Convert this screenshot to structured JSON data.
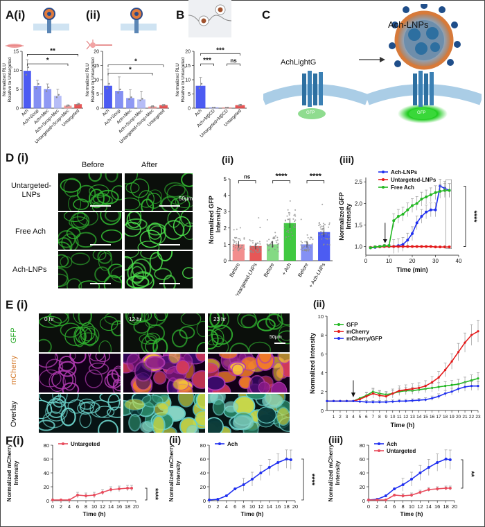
{
  "panels": {
    "A_i": "A(i)",
    "A_ii": "(ii)",
    "B": "B",
    "C": "C",
    "D_i": "D (i)",
    "D_ii": "(ii)",
    "D_iii": "(iii)",
    "E_i": "E (i)",
    "E_ii": "(ii)",
    "F_i": "F(i)",
    "F_ii": "(ii)",
    "F_iii": "(iii)"
  },
  "significance": {
    "A_i_top": "**",
    "A_i_mid": "*",
    "A_ii_top": "*",
    "A_ii_mid": "*",
    "B_top": "***",
    "B_mid": "***",
    "B_ns": "ns",
    "D_ii_ns": "ns",
    "D_ii_s1": "****",
    "D_ii_s2": "****",
    "D_iii": "****",
    "F_i": "****",
    "F_ii": "****",
    "F_iii": "**"
  },
  "C_labels": {
    "achlight": "AchLightG",
    "achlnps": "Ach-LNPs",
    "gfp_left": "GFP",
    "gfp_right": "GFP"
  },
  "D_i": {
    "before": "Before",
    "after": "After",
    "row1": "Untargeted-\nLNPs",
    "row1a": "Untargeted-",
    "row1b": "LNPs",
    "row2": "Free Ach",
    "row3": "Ach-LNPs",
    "scale": "50μm"
  },
  "E_i": {
    "t0": "0 hr",
    "t12": "12 hr",
    "t23": "23 hr",
    "gfp": "GFP",
    "mcherry": "mCherry",
    "overlay": "Overlay",
    "scale": "50μm"
  },
  "chart_data": [
    {
      "id": "A_i",
      "type": "bar",
      "ylabel": "Normalized RLU\nRelative to Untargeted",
      "ylabel_lines": [
        "Normalized RLU",
        "Relative to Untargeted"
      ],
      "categories": [
        "Ach",
        "Ach+Scop",
        "Ach+Mec",
        "Ach+Scop+Mec",
        "Untargeted+Scop+Mec",
        "Untargeted"
      ],
      "values": [
        9.8,
        5.8,
        5.0,
        3.2,
        0.6,
        1.0
      ],
      "errors": [
        3.0,
        1.6,
        1.4,
        1.8,
        0.3,
        0.3
      ],
      "colors": [
        "#2d3ff0",
        "#6f7df2",
        "#7c88f3",
        "#aab2f6",
        "#f08a8a",
        "#e23a3a"
      ],
      "ylim": [
        0,
        15
      ],
      "yticks": [
        0,
        5,
        10,
        15
      ]
    },
    {
      "id": "A_ii",
      "type": "bar",
      "ylabel_lines": [
        "Normalized RLU",
        "Relative to Untargeted"
      ],
      "categories": [
        "Ach",
        "Ach+Scop",
        "Ach+Mec",
        "Ach+Scop+Mec",
        "Untargeted+Scop+Mec",
        "Untargeted"
      ],
      "values": [
        7.8,
        6.0,
        3.5,
        3.0,
        0.5,
        1.0
      ],
      "errors": [
        6.0,
        5.0,
        3.0,
        3.0,
        0.4,
        0.3
      ],
      "colors": [
        "#2d3ff0",
        "#6f7df2",
        "#7c88f3",
        "#aab2f6",
        "#f08a8a",
        "#e23a3a"
      ],
      "ylim": [
        0,
        20
      ],
      "yticks": [
        0,
        5,
        10,
        15,
        20
      ]
    },
    {
      "id": "B",
      "type": "bar",
      "ylabel_lines": [
        "Normalized RLU",
        "Relative to Untargeted"
      ],
      "categories": [
        "Ach",
        "Ach+MβCD",
        "Untargeted+MβCD",
        "Untargeted"
      ],
      "values": [
        7.8,
        0.2,
        0.2,
        1.0
      ],
      "errors": [
        3.0,
        0.1,
        0.1,
        0.4
      ],
      "colors": [
        "#2d3ff0",
        "#8a93f2",
        "#f08a8a",
        "#e23a3a"
      ],
      "ylim": [
        0,
        20
      ],
      "yticks": [
        0,
        5,
        10,
        15,
        20
      ]
    },
    {
      "id": "D_ii",
      "type": "bar",
      "ylabel_lines": [
        "Normalized GFP",
        "Intensity"
      ],
      "categories": [
        "Before",
        "+ Untargeted-LNPs",
        "Before",
        "+ Ach",
        "Before",
        "+ Ach-LNPs"
      ],
      "values": [
        1.0,
        0.9,
        1.0,
        2.3,
        1.0,
        1.75
      ],
      "errors": [
        0.1,
        0.1,
        0.1,
        0.15,
        0.1,
        0.15
      ],
      "colors": [
        "#f07a7a",
        "#e23a3a",
        "#6fd46f",
        "#1fbf1f",
        "#6f7df2",
        "#2d3ff0"
      ],
      "ylim": [
        0,
        5
      ],
      "yticks": [
        0,
        1,
        2,
        3,
        4,
        5
      ]
    },
    {
      "id": "D_iii",
      "type": "line",
      "xlabel": "Time (min)",
      "ylabel_lines": [
        "Normalized GFP",
        "Intensity"
      ],
      "xlim": [
        0,
        40
      ],
      "ylim": [
        0.8,
        2.6
      ],
      "xticks": [
        0,
        10,
        20,
        30,
        40
      ],
      "yticks": [
        1.0,
        1.5,
        2.0,
        2.5
      ],
      "series": [
        {
          "name": "Ach-LNPs",
          "color": "#1f2ff0",
          "x": [
            2,
            4,
            6,
            8,
            10,
            12,
            14,
            16,
            18,
            20,
            22,
            24,
            26,
            28,
            30,
            32,
            34,
            36
          ],
          "y": [
            0.97,
            0.98,
            1.0,
            1.0,
            1.0,
            1.0,
            1.02,
            1.05,
            1.15,
            1.3,
            1.55,
            1.7,
            1.8,
            1.85,
            1.85,
            2.4,
            2.35,
            2.3
          ]
        },
        {
          "name": "Untargeted-LNPs",
          "color": "#e41a1a",
          "x": [
            2,
            4,
            6,
            8,
            10,
            12,
            14,
            16,
            18,
            20,
            22,
            24,
            26,
            28,
            30,
            32,
            34,
            36
          ],
          "y": [
            0.98,
            0.99,
            0.99,
            1.0,
            1.0,
            1.0,
            1.0,
            1.0,
            1.0,
            1.0,
            1.0,
            1.0,
            1.0,
            1.0,
            0.99,
            0.99,
            0.99,
            0.99
          ]
        },
        {
          "name": "Free Ach",
          "color": "#22b822",
          "x": [
            2,
            4,
            6,
            8,
            10,
            12,
            14,
            16,
            18,
            20,
            22,
            24,
            26,
            28,
            30,
            32,
            34,
            36
          ],
          "y": [
            0.97,
            0.99,
            1.0,
            1.02,
            1.02,
            1.6,
            1.7,
            1.75,
            1.85,
            1.95,
            2.0,
            2.1,
            2.15,
            2.2,
            2.25,
            2.28,
            2.3,
            2.3
          ]
        }
      ],
      "errors": 0.18
    },
    {
      "id": "E_ii",
      "type": "line",
      "xlabel": "Time (h)",
      "ylabel": "Normalized Intensity",
      "xlim": [
        0,
        23
      ],
      "ylim": [
        0,
        10
      ],
      "xticks": [
        1,
        2,
        3,
        4,
        5,
        6,
        7,
        8,
        9,
        10,
        11,
        12,
        13,
        14,
        15,
        16,
        17,
        18,
        19,
        20,
        21,
        22,
        23
      ],
      "yticks": [
        0,
        2,
        4,
        6,
        8,
        10
      ],
      "series": [
        {
          "name": "GFP",
          "color": "#22b822",
          "x": [
            0,
            1,
            2,
            3,
            4,
            5,
            6,
            7,
            8,
            9,
            10,
            11,
            12,
            13,
            14,
            15,
            16,
            17,
            18,
            19,
            20,
            21,
            22,
            23
          ],
          "y": [
            1,
            1,
            1,
            1,
            1,
            1.3,
            1.6,
            2.0,
            1.8,
            1.7,
            1.8,
            2.0,
            2.1,
            2.1,
            2.2,
            2.3,
            2.4,
            2.5,
            2.6,
            2.7,
            2.8,
            3.0,
            3.2,
            3.4
          ]
        },
        {
          "name": "mCherry",
          "color": "#e41a1a",
          "x": [
            0,
            1,
            2,
            3,
            4,
            5,
            6,
            7,
            8,
            9,
            10,
            11,
            12,
            13,
            14,
            15,
            16,
            17,
            18,
            19,
            20,
            21,
            22,
            23
          ],
          "y": [
            1,
            1,
            1,
            1,
            1,
            1.2,
            1.5,
            1.8,
            1.6,
            1.5,
            1.8,
            2.1,
            2.2,
            2.3,
            2.4,
            2.6,
            3.0,
            3.5,
            4.3,
            5.2,
            6.2,
            7.2,
            8.0,
            8.4
          ]
        },
        {
          "name": "mCherry/GFP",
          "color": "#1f2ff0",
          "x": [
            0,
            1,
            2,
            3,
            4,
            5,
            6,
            7,
            8,
            9,
            10,
            11,
            12,
            13,
            14,
            15,
            16,
            17,
            18,
            19,
            20,
            21,
            22,
            23
          ],
          "y": [
            1,
            1,
            1,
            1,
            1,
            0.95,
            0.9,
            0.9,
            0.9,
            0.9,
            0.95,
            1.0,
            1.0,
            1.05,
            1.1,
            1.15,
            1.3,
            1.5,
            1.8,
            2.0,
            2.3,
            2.5,
            2.6,
            2.6
          ]
        }
      ]
    },
    {
      "id": "F_i",
      "type": "line",
      "xlabel": "Time (h)",
      "ylabel_lines": [
        "Normalized mCherry",
        "Intensity"
      ],
      "xlim": [
        0,
        20
      ],
      "ylim": [
        0,
        80
      ],
      "xticks": [
        0,
        2,
        4,
        6,
        8,
        10,
        12,
        14,
        16,
        18,
        20
      ],
      "yticks": [
        0,
        20,
        40,
        60,
        80
      ],
      "series": [
        {
          "name": "Untargeted",
          "color": "#e84b5c",
          "x": [
            0,
            2,
            4,
            6,
            8,
            10,
            12,
            14,
            16,
            18,
            19
          ],
          "y": [
            1,
            1,
            1,
            8,
            7,
            8,
            12,
            16,
            17,
            18,
            18
          ]
        }
      ]
    },
    {
      "id": "F_ii",
      "type": "line",
      "xlabel": "Time (h)",
      "ylabel_lines": [
        "Normalized mCherry",
        "Intensity"
      ],
      "xlim": [
        0,
        20
      ],
      "ylim": [
        0,
        80
      ],
      "xticks": [
        0,
        2,
        4,
        6,
        8,
        10,
        12,
        14,
        16,
        18,
        20
      ],
      "yticks": [
        0,
        20,
        40,
        60,
        80
      ],
      "series": [
        {
          "name": "Ach",
          "color": "#1f2ff0",
          "x": [
            0,
            2,
            4,
            6,
            8,
            10,
            12,
            14,
            16,
            18,
            19
          ],
          "y": [
            1,
            2,
            7,
            17,
            23,
            31,
            40,
            48,
            55,
            60,
            59
          ]
        }
      ]
    },
    {
      "id": "F_iii",
      "type": "line",
      "xlabel": "Time (h)",
      "ylabel_lines": [
        "Normalized mCherry",
        "Intensity"
      ],
      "xlim": [
        0,
        20
      ],
      "ylim": [
        0,
        80
      ],
      "xticks": [
        0,
        2,
        4,
        6,
        8,
        10,
        12,
        14,
        16,
        18,
        20
      ],
      "yticks": [
        0,
        20,
        40,
        60,
        80
      ],
      "series": [
        {
          "name": "Ach",
          "color": "#1f2ff0",
          "x": [
            0,
            2,
            4,
            6,
            8,
            10,
            12,
            14,
            16,
            18,
            19
          ],
          "y": [
            1,
            2,
            7,
            17,
            23,
            31,
            40,
            48,
            55,
            60,
            59
          ]
        },
        {
          "name": "Untargeted",
          "color": "#e84b5c",
          "x": [
            0,
            2,
            4,
            6,
            8,
            10,
            12,
            14,
            16,
            18,
            19
          ],
          "y": [
            1,
            1,
            1,
            8,
            7,
            8,
            12,
            16,
            17,
            18,
            18
          ]
        }
      ]
    }
  ]
}
